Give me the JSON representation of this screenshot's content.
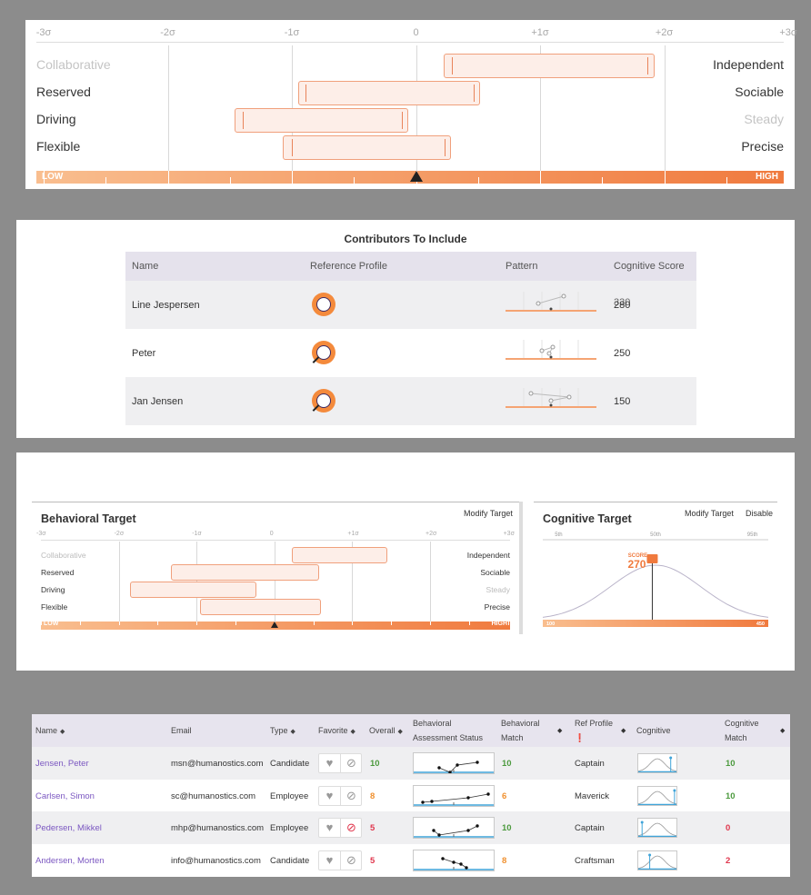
{
  "colors": {
    "accent": "#f07a3e",
    "band_fill": "#fdeee8",
    "band_border": "#f0a07c",
    "link": "#7b57c1",
    "green": "#4c9a3e",
    "orange": "#f0902e",
    "red": "#e0364d"
  },
  "top_chart": {
    "sigma_labels": [
      "-3σ",
      "-2σ",
      "-1σ",
      "0",
      "+1σ",
      "+2σ",
      "+3σ"
    ],
    "traits": [
      {
        "left": "Collaborative",
        "right": "Independent",
        "left_dim": true,
        "right_dim": false,
        "range": [
          0.22,
          1.92
        ],
        "lines": [
          0.28,
          1.86
        ]
      },
      {
        "left": "Reserved",
        "right": "Sociable",
        "left_dim": false,
        "right_dim": false,
        "range": [
          -0.95,
          0.52
        ],
        "lines": [
          -0.9,
          0.46
        ]
      },
      {
        "left": "Driving",
        "right": "Steady",
        "left_dim": false,
        "right_dim": true,
        "range": [
          -1.46,
          -0.06
        ],
        "lines": [
          -1.4,
          -0.12
        ]
      },
      {
        "left": "Flexible",
        "right": "Precise",
        "left_dim": false,
        "right_dim": false,
        "range": [
          -1.07,
          0.28
        ],
        "lines": [
          -1.01,
          0.22
        ]
      }
    ],
    "low_label": "LOW",
    "high_label": "HIGH",
    "marker_value": 0
  },
  "contributors": {
    "title": "Contributors To Include",
    "headers": [
      "Name",
      "Reference Profile",
      "Pattern",
      "Cognitive Score"
    ],
    "rows": [
      {
        "name": "Line Jespersen",
        "profile_icon": "maverick-badge-icon",
        "score": "280",
        "score_overlay": "330"
      },
      {
        "name": "Peter",
        "profile_icon": "captain-badge-icon",
        "score": "250",
        "score_overlay": ""
      },
      {
        "name": "Jan Jensen",
        "profile_icon": "captain-badge-icon",
        "score": "150",
        "score_overlay": ""
      }
    ]
  },
  "behavioral_target": {
    "title": "Behavioral Target",
    "modify": "Modify Target",
    "sigma_labels": [
      "-3σ",
      "-2σ",
      "-1σ",
      "0",
      "+1σ",
      "+2σ",
      "+3σ"
    ],
    "traits": [
      {
        "left": "Collaborative",
        "right": "Independent",
        "left_dim": true,
        "right_dim": false,
        "range": [
          0.22,
          1.45
        ]
      },
      {
        "left": "Reserved",
        "right": "Sociable",
        "left_dim": false,
        "right_dim": false,
        "range": [
          -1.33,
          0.58
        ]
      },
      {
        "left": "Driving",
        "right": "Steady",
        "left_dim": false,
        "right_dim": true,
        "range": [
          -1.86,
          -0.23
        ]
      },
      {
        "left": "Flexible",
        "right": "Precise",
        "left_dim": false,
        "right_dim": false,
        "range": [
          -0.95,
          0.6
        ]
      }
    ],
    "low_label": "LOW",
    "high_label": "HIGH"
  },
  "cognitive_target": {
    "title": "Cognitive Target",
    "modify": "Modify Target",
    "disable": "Disable",
    "axis": [
      "5th",
      "50th",
      "95th"
    ],
    "score_label": "SCORE",
    "score": "270",
    "min": "100",
    "max": "450",
    "score_value": 270
  },
  "candidates": {
    "headers": {
      "name": "Name",
      "email": "Email",
      "type": "Type",
      "favorite": "Favorite",
      "overall": "Overall",
      "bas1": "Behavioral",
      "bas2": "Assessment Status",
      "bm1": "Behavioral",
      "bm2": "Match",
      "ref1": "Ref Profile",
      "cognitive": "Cognitive",
      "cm1": "Cognitive",
      "cm2": "Match"
    },
    "rows": [
      {
        "name": "Jensen, Peter",
        "email": "msn@humanostics.com",
        "type": "Candidate",
        "overall": "10",
        "overall_color": "green",
        "bm": "10",
        "bm_color": "green",
        "ref": "Captain",
        "cm": "10",
        "cm_color": "green",
        "pts": [
          [
            28,
            16
          ],
          [
            40,
            21
          ],
          [
            48,
            13
          ],
          [
            70,
            10
          ]
        ],
        "peak": 0.85,
        "blocked": false
      },
      {
        "name": "Carlsen, Simon",
        "email": "sc@humanostics.com",
        "type": "Employee",
        "overall": "8",
        "overall_color": "orange",
        "bm": "6",
        "bm_color": "orange",
        "ref": "Maverick",
        "cm": "10",
        "cm_color": "green",
        "pts": [
          [
            10,
            18
          ],
          [
            20,
            17
          ],
          [
            60,
            13
          ],
          [
            82,
            9
          ]
        ],
        "peak": 0.95,
        "blocked": false
      },
      {
        "name": "Pedersen, Mikkel",
        "email": "mhp@humanostics.com",
        "type": "Employee",
        "overall": "5",
        "overall_color": "red",
        "bm": "10",
        "bm_color": "green",
        "ref": "Captain",
        "cm": "0",
        "cm_color": "red",
        "pts": [
          [
            22,
            14
          ],
          [
            28,
            19
          ],
          [
            60,
            14
          ],
          [
            70,
            9
          ]
        ],
        "peak": 0.1,
        "blocked": true
      },
      {
        "name": "Andersen, Morten",
        "email": "info@humanostics.com",
        "type": "Candidate",
        "overall": "5",
        "overall_color": "red",
        "bm": "8",
        "bm_color": "orange",
        "ref": "Craftsman",
        "cm": "2",
        "cm_color": "red",
        "pts": [
          [
            32,
            9
          ],
          [
            44,
            13
          ],
          [
            52,
            15
          ],
          [
            58,
            19
          ]
        ],
        "peak": 0.3,
        "blocked": false
      }
    ]
  }
}
